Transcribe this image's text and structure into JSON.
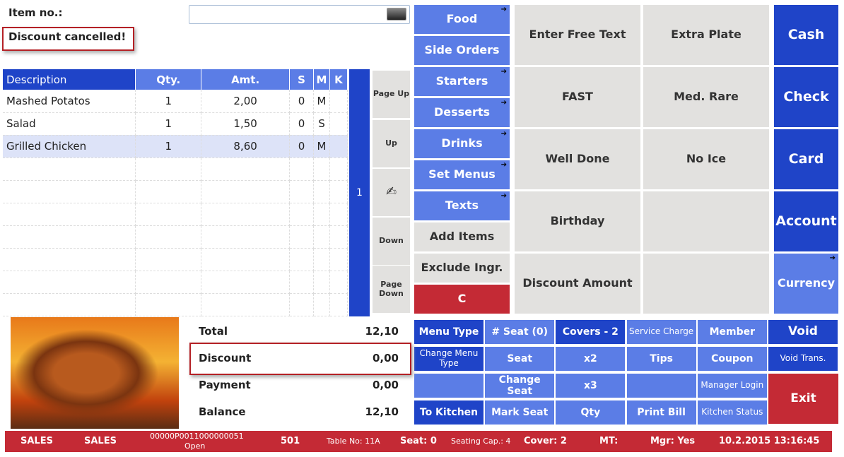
{
  "header": {
    "item_label": "Item no.:",
    "item_value": "",
    "message": "Discount cancelled!"
  },
  "table": {
    "headers": [
      "Description",
      "Qty.",
      "Amt.",
      "S",
      "M",
      "K"
    ],
    "rows": [
      [
        "Mashed Potatos",
        "1",
        "2,00",
        "0",
        "M",
        ""
      ],
      [
        "Salad",
        "1",
        "1,50",
        "0",
        "S",
        ""
      ],
      [
        "Grilled Chicken",
        "1",
        "8,60",
        "0",
        "M",
        ""
      ]
    ]
  },
  "seat_indicator": "1",
  "nav": [
    "Page Up",
    "Up",
    "",
    "Down",
    "Page Down"
  ],
  "categories": [
    {
      "label": "Food",
      "arrow": true,
      "c": "lt"
    },
    {
      "label": "Side Orders",
      "arrow": false,
      "c": "lt"
    },
    {
      "label": "Starters",
      "arrow": true,
      "c": "lt"
    },
    {
      "label": "Desserts",
      "arrow": true,
      "c": "lt"
    },
    {
      "label": "Drinks",
      "arrow": true,
      "c": "lt"
    },
    {
      "label": "Set Menus",
      "arrow": true,
      "c": "lt"
    },
    {
      "label": "Texts",
      "arrow": true,
      "c": "lt"
    },
    {
      "label": "Add Items",
      "arrow": false,
      "c": "gy"
    },
    {
      "label": "Exclude Ingr.",
      "arrow": false,
      "c": "gy"
    },
    {
      "label": "C",
      "arrow": false,
      "c": "rd"
    }
  ],
  "modifiers": [
    [
      "Enter Free Text",
      "Extra Plate"
    ],
    [
      "FAST",
      "Med. Rare"
    ],
    [
      "Well Done",
      "No Ice"
    ],
    [
      "Birthday",
      ""
    ],
    [
      "Discount Amount",
      ""
    ]
  ],
  "payments": [
    {
      "label": "Cash",
      "arrow": false,
      "c": "dk"
    },
    {
      "label": "Check",
      "arrow": false,
      "c": "dk"
    },
    {
      "label": "Card",
      "arrow": false,
      "c": "dk"
    },
    {
      "label": "Account",
      "arrow": false,
      "c": "dk"
    },
    {
      "label": "Currency",
      "arrow": true,
      "c": "lt"
    }
  ],
  "functions": [
    [
      {
        "label": "Menu Type",
        "c": "dk"
      },
      {
        "label": "# Seat (0)",
        "c": "lt"
      },
      {
        "label": "Covers - 2",
        "c": "dk"
      },
      {
        "label": "Service Charge",
        "c": "lt",
        "thin": true
      },
      {
        "label": "Member",
        "c": "lt"
      },
      {
        "label": "Void",
        "c": "dk",
        "big": true
      }
    ],
    [
      {
        "label": "Change Menu Type",
        "c": "dk",
        "thin": true
      },
      {
        "label": "Seat",
        "c": "lt"
      },
      {
        "label": "x2",
        "c": "lt"
      },
      {
        "label": "Tips",
        "c": "lt"
      },
      {
        "label": "Coupon",
        "c": "lt"
      },
      {
        "label": "Void Trans.",
        "c": "dk",
        "thin": true
      }
    ],
    [
      {
        "label": "",
        "c": "lt"
      },
      {
        "label": "Change Seat",
        "c": "lt"
      },
      {
        "label": "x3",
        "c": "lt"
      },
      {
        "label": "",
        "c": "lt"
      },
      {
        "label": "Manager Login",
        "c": "lt",
        "thin": true
      }
    ],
    [
      {
        "label": "To Kitchen",
        "c": "dk"
      },
      {
        "label": "Mark Seat",
        "c": "lt"
      },
      {
        "label": "Qty",
        "c": "lt"
      },
      {
        "label": "Print Bill",
        "c": "lt"
      },
      {
        "label": "Kitchen Status",
        "c": "lt",
        "thin": true
      }
    ]
  ],
  "exit_label": "Exit",
  "totals": [
    {
      "label": "Total",
      "value": "12,10"
    },
    {
      "label": "Discount",
      "value": "0,00"
    },
    {
      "label": "Payment",
      "value": "0,00"
    },
    {
      "label": "Balance",
      "value": "12,10"
    }
  ],
  "status": {
    "mode1": "SALES",
    "mode2": "SALES",
    "txn_id": "00000P0011000000051",
    "txn_state": "Open",
    "terminal": "501",
    "table": "Table No: 11A",
    "seat": "Seat: 0",
    "seating_cap": "Seating Cap.: 4",
    "cover": "Cover: 2",
    "mt": "MT:",
    "mgr": "Mgr: Yes",
    "datetime": "10.2.2015 13:16:45"
  },
  "colors": {
    "dark_blue": "#1f44c8",
    "light_blue": "#5b7de6",
    "gray": "#e2e1df",
    "red": "#c42a35"
  }
}
